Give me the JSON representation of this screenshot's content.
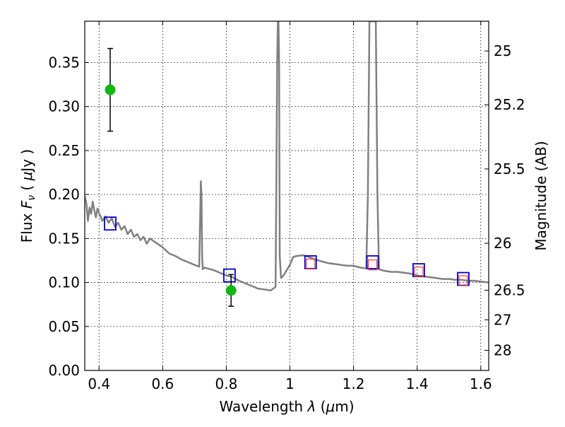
{
  "chart_data": {
    "type": "line",
    "title": "",
    "xlabel": "Wavelength  λ (μm)",
    "ylabel": "Flux  Fν  ( μJy )",
    "y2label": "Magnitude (AB)",
    "xlim": [
      0.355,
      1.625
    ],
    "ylim": [
      0.0,
      0.397
    ],
    "grid": true,
    "legend": "none",
    "x_ticks": [
      0.4,
      0.6,
      0.8,
      1.0,
      1.2,
      1.4,
      1.6
    ],
    "x_tick_labels": [
      "0.4",
      "0.6",
      "0.8",
      "1",
      "1.2",
      "1.4",
      "1.6"
    ],
    "y_ticks": [
      0.0,
      0.05,
      0.1,
      0.15,
      0.2,
      0.25,
      0.3,
      0.35
    ],
    "y_tick_labels": [
      "0.00",
      "0.05",
      "0.10",
      "0.15",
      "0.20",
      "0.25",
      "0.30",
      "0.35"
    ],
    "y2_ticks": [
      {
        "mag": 25,
        "label": "25"
      },
      {
        "mag": 25.2,
        "label": "25.2"
      },
      {
        "mag": 25.5,
        "label": "25.5"
      },
      {
        "mag": 26,
        "label": "26"
      },
      {
        "mag": 26.5,
        "label": "26.5"
      },
      {
        "mag": 27,
        "label": "27"
      },
      {
        "mag": 28,
        "label": "28"
      }
    ],
    "series": [
      {
        "style": "model-spectrum",
        "color": "#808080",
        "x": [
          0.355,
          0.36,
          0.365,
          0.37,
          0.375,
          0.38,
          0.385,
          0.39,
          0.395,
          0.4,
          0.41,
          0.42,
          0.43,
          0.44,
          0.45,
          0.46,
          0.47,
          0.48,
          0.49,
          0.5,
          0.51,
          0.52,
          0.53,
          0.54,
          0.55,
          0.56,
          0.58,
          0.6,
          0.62,
          0.64,
          0.66,
          0.68,
          0.7,
          0.715,
          0.72,
          0.722,
          0.724,
          0.726,
          0.73,
          0.76,
          0.8,
          0.82,
          0.84,
          0.86,
          0.88,
          0.9,
          0.92,
          0.94,
          0.955,
          0.96,
          0.962,
          0.964,
          0.966,
          0.968,
          0.972,
          0.98,
          0.99,
          1.0,
          1.01,
          1.02,
          1.04,
          1.06,
          1.08,
          1.1,
          1.12,
          1.14,
          1.16,
          1.18,
          1.2,
          1.22,
          1.24,
          1.245,
          1.25,
          1.255,
          1.26,
          1.265,
          1.27,
          1.275,
          1.28,
          1.3,
          1.32,
          1.34,
          1.36,
          1.38,
          1.4,
          1.42,
          1.44,
          1.46,
          1.48,
          1.5,
          1.52,
          1.54,
          1.56,
          1.58,
          1.6,
          1.625
        ],
        "y": [
          0.198,
          0.19,
          0.17,
          0.185,
          0.178,
          0.192,
          0.182,
          0.174,
          0.184,
          0.179,
          0.17,
          0.175,
          0.168,
          0.173,
          0.163,
          0.168,
          0.16,
          0.164,
          0.155,
          0.16,
          0.152,
          0.155,
          0.148,
          0.152,
          0.144,
          0.15,
          0.145,
          0.14,
          0.133,
          0.13,
          0.126,
          0.123,
          0.12,
          0.118,
          0.215,
          0.2,
          0.13,
          0.115,
          0.117,
          0.114,
          0.108,
          0.106,
          0.102,
          0.099,
          0.096,
          0.093,
          0.092,
          0.091,
          0.095,
          0.35,
          0.397,
          0.397,
          0.35,
          0.13,
          0.105,
          0.108,
          0.114,
          0.12,
          0.129,
          0.13,
          0.131,
          0.129,
          0.126,
          0.124,
          0.122,
          0.121,
          0.12,
          0.119,
          0.119,
          0.117,
          0.116,
          0.2,
          0.397,
          0.397,
          0.397,
          0.397,
          0.397,
          0.2,
          0.115,
          0.113,
          0.112,
          0.112,
          0.111,
          0.11,
          0.108,
          0.107,
          0.106,
          0.105,
          0.104,
          0.104,
          0.103,
          0.103,
          0.102,
          0.102,
          0.101,
          0.1
        ]
      },
      {
        "style": "model-photometry",
        "marker": "square",
        "color": "#0000cc",
        "x": [
          0.435,
          0.81,
          1.065,
          1.26,
          1.405,
          1.545
        ],
        "y": [
          0.167,
          0.108,
          0.123,
          0.123,
          0.114,
          0.104
        ]
      },
      {
        "style": "observed-photometry",
        "marker": "square",
        "color": "#ff3b3b",
        "x": [
          1.065,
          1.26,
          1.405,
          1.545
        ],
        "y": [
          0.121,
          0.12,
          0.112,
          0.102
        ]
      },
      {
        "style": "observed-points-with-errors",
        "marker": "circle",
        "color": "#11b811",
        "x": [
          0.435,
          0.815
        ],
        "y": [
          0.319,
          0.091
        ],
        "yerr": [
          0.047,
          0.018
        ]
      }
    ]
  }
}
